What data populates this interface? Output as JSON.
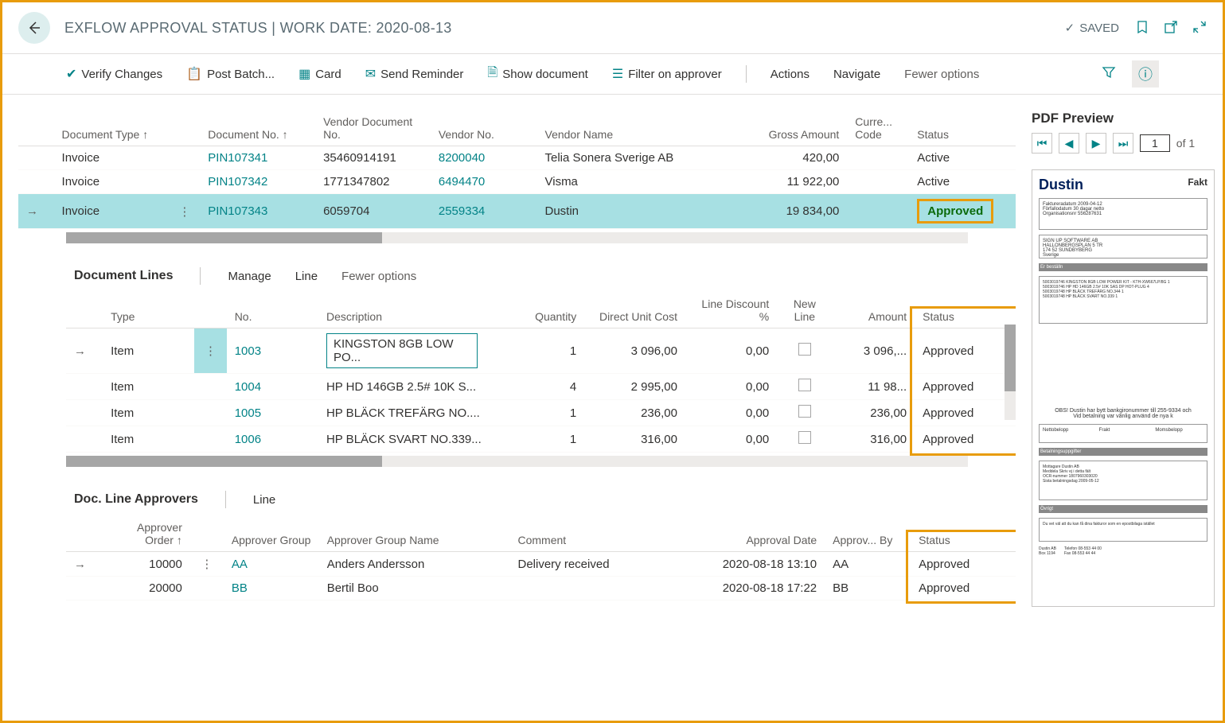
{
  "header": {
    "title": "EXFLOW APPROVAL STATUS | WORK DATE: 2020-08-13",
    "saved": "SAVED"
  },
  "toolbar": {
    "verify": "Verify Changes",
    "post_batch": "Post Batch...",
    "card": "Card",
    "send_reminder": "Send Reminder",
    "show_doc": "Show document",
    "filter_approver": "Filter on approver",
    "actions": "Actions",
    "navigate": "Navigate",
    "fewer": "Fewer options"
  },
  "main_table": {
    "cols": {
      "doc_type": "Document Type ↑",
      "doc_no": "Document No. ↑",
      "vendor_doc_no": "Vendor Document No.",
      "vendor_no": "Vendor No.",
      "vendor_name": "Vendor Name",
      "gross": "Gross Amount",
      "curr": "Curre... Code",
      "status": "Status"
    },
    "rows": [
      {
        "type": "Invoice",
        "docno": "PIN107341",
        "vdocno": "35460914191",
        "vno": "8200040",
        "vname": "Telia Sonera Sverige AB",
        "gross": "420,00",
        "curr": "",
        "status": "Active",
        "sel": false
      },
      {
        "type": "Invoice",
        "docno": "PIN107342",
        "vdocno": "1771347802",
        "vno": "6494470",
        "vname": "Visma",
        "gross": "11 922,00",
        "curr": "",
        "status": "Active",
        "sel": false
      },
      {
        "type": "Invoice",
        "docno": "PIN107343",
        "vdocno": "6059704",
        "vno": "2559334",
        "vname": "Dustin",
        "gross": "19 834,00",
        "curr": "",
        "status": "Approved",
        "sel": true
      }
    ]
  },
  "doc_lines": {
    "title": "Document Lines",
    "manage": "Manage",
    "line": "Line",
    "fewer": "Fewer options",
    "cols": {
      "type": "Type",
      "no": "No.",
      "desc": "Description",
      "qty": "Quantity",
      "unit_cost": "Direct Unit Cost",
      "disc": "Line Discount %",
      "newline": "New Line",
      "amount": "Amount",
      "status": "Status"
    },
    "rows": [
      {
        "type": "Item",
        "no": "1003",
        "desc": "KINGSTON 8GB LOW PO...",
        "qty": "1",
        "cost": "3 096,00",
        "disc": "0,00",
        "amount": "3 096,...",
        "status": "Approved",
        "sel": true
      },
      {
        "type": "Item",
        "no": "1004",
        "desc": "HP HD 146GB 2.5# 10K S...",
        "qty": "4",
        "cost": "2 995,00",
        "disc": "0,00",
        "amount": "11 98...",
        "status": "Approved",
        "sel": false
      },
      {
        "type": "Item",
        "no": "1005",
        "desc": "HP BLÄCK TREFÄRG NO....",
        "qty": "1",
        "cost": "236,00",
        "disc": "0,00",
        "amount": "236,00",
        "status": "Approved",
        "sel": false
      },
      {
        "type": "Item",
        "no": "1006",
        "desc": "HP BLÄCK SVART NO.339...",
        "qty": "1",
        "cost": "316,00",
        "disc": "0,00",
        "amount": "316,00",
        "status": "Approved",
        "sel": false
      }
    ]
  },
  "approvers": {
    "title": "Doc. Line Approvers",
    "line": "Line",
    "cols": {
      "order": "Approver Order ↑",
      "group": "Approver Group",
      "name": "Approver Group Name",
      "comment": "Comment",
      "date": "Approval Date",
      "by": "Approv... By",
      "status": "Status"
    },
    "rows": [
      {
        "order": "10000",
        "group": "AA",
        "name": "Anders Andersson",
        "comment": "Delivery received",
        "date": "2020-08-18 13:10",
        "by": "AA",
        "status": "Approved",
        "sel": true
      },
      {
        "order": "20000",
        "group": "BB",
        "name": "Bertil Boo",
        "comment": "",
        "date": "2020-08-18 17:22",
        "by": "BB",
        "status": "Approved",
        "sel": false
      }
    ]
  },
  "pdf": {
    "title": "PDF Preview",
    "page": "1",
    "of": "of 1",
    "logo": "Dustin",
    "fak": "Fakt"
  }
}
